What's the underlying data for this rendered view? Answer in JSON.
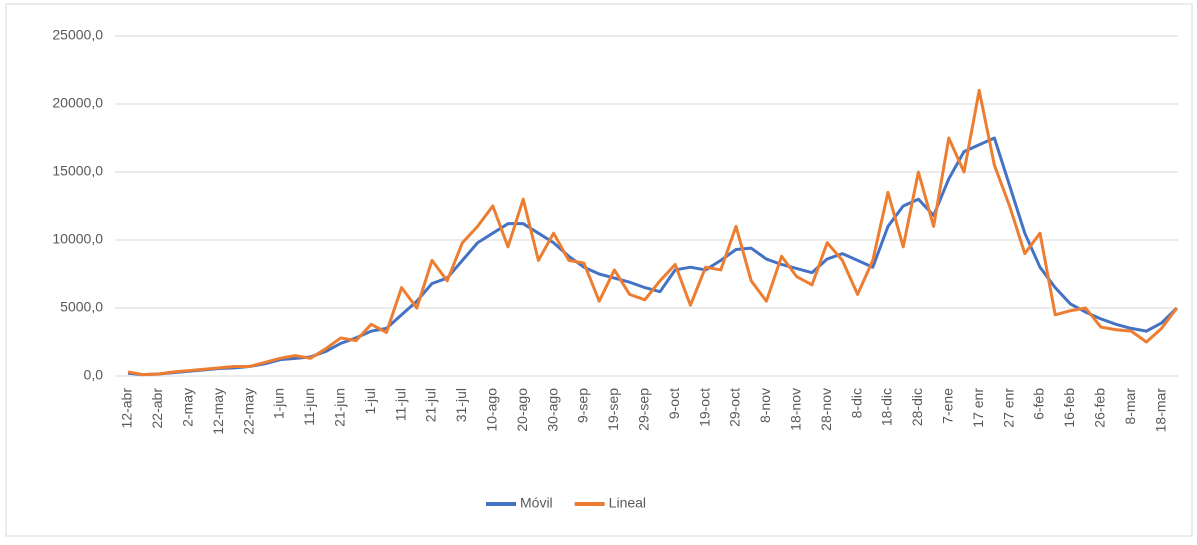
{
  "chart_data": {
    "type": "line",
    "categories": [
      "12-abr",
      null,
      "22-abr",
      null,
      "2-may",
      null,
      "12-may",
      null,
      "22-may",
      null,
      "1-jun",
      null,
      "11-jun",
      null,
      "21-jun",
      null,
      "1-jul",
      null,
      "11-jul",
      null,
      "21-jul",
      null,
      "31-jul",
      null,
      "10-ago",
      null,
      "20-ago",
      null,
      "30-ago",
      null,
      "9-sep",
      null,
      "19-sep",
      null,
      "29-sep",
      null,
      "9-oct",
      null,
      "19-oct",
      null,
      "29-oct",
      null,
      "8-nov",
      null,
      "18-nov",
      null,
      "28-nov",
      null,
      "8-dic",
      null,
      "18-dic",
      null,
      "28-dic",
      null,
      "7-ene",
      null,
      "17 enr",
      null,
      "27 enr",
      null,
      "6-feb",
      null,
      "16-feb",
      null,
      "26-feb",
      null,
      "8-mar",
      null,
      "18-mar",
      null
    ],
    "series": [
      {
        "name": "Móvil",
        "color": "#4472c4",
        "values": [
          200,
          100,
          150,
          250,
          350,
          450,
          550,
          600,
          700,
          900,
          1200,
          1300,
          1400,
          1800,
          2400,
          2800,
          3300,
          3500,
          4500,
          5500,
          6800,
          7200,
          8500,
          9800,
          10500,
          11200,
          11200,
          10500,
          9800,
          8800,
          8000,
          7500,
          7200,
          6900,
          6500,
          6200,
          7800,
          8000,
          7800,
          8500,
          9300,
          9400,
          8600,
          8200,
          7900,
          7600,
          8600,
          9000,
          8500,
          8000,
          11000,
          12500,
          13000,
          11800,
          14500,
          16500,
          17000,
          17500,
          14000,
          10500,
          8000,
          6500,
          5300,
          4700,
          4200,
          3800,
          3500,
          3300,
          3900,
          5000
        ]
      },
      {
        "name": "Lineal",
        "color": "#ed7d31",
        "values": [
          300,
          100,
          150,
          300,
          400,
          500,
          600,
          700,
          700,
          1000,
          1300,
          1500,
          1300,
          2000,
          2800,
          2600,
          3800,
          3200,
          6500,
          5000,
          8500,
          7000,
          9800,
          11000,
          12500,
          9500,
          13000,
          8500,
          10500,
          8500,
          8300,
          5500,
          7800,
          6000,
          5600,
          7000,
          8200,
          5200,
          8000,
          7800,
          11000,
          7000,
          5500,
          8800,
          7300,
          6700,
          9800,
          8500,
          6000,
          8500,
          13500,
          9500,
          15000,
          11000,
          17500,
          15000,
          21000,
          15500,
          12500,
          9000,
          10500,
          4500,
          4800,
          5000,
          3600,
          3400,
          3300,
          2500,
          3500,
          5000
        ]
      }
    ],
    "ylim": [
      0,
      25000
    ],
    "yticks": [
      {
        "value": 0,
        "label": "0,0"
      },
      {
        "value": 5000,
        "label": "5000,0"
      },
      {
        "value": 10000,
        "label": "10000,0"
      },
      {
        "value": 15000,
        "label": "15000,0"
      },
      {
        "value": 20000,
        "label": "20000,0"
      },
      {
        "value": 25000,
        "label": "25000,0"
      }
    ],
    "grid": true,
    "legend": "bottom"
  }
}
